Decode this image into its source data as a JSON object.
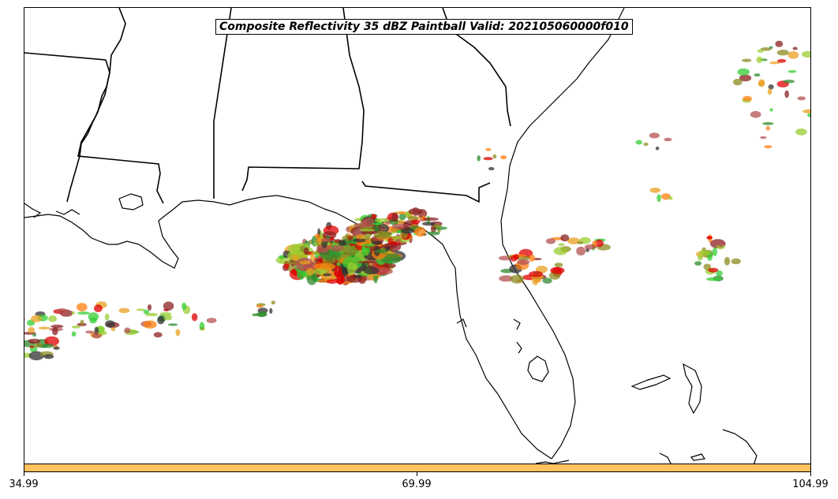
{
  "title": "Composite Reflectivity 35 dBZ Paintball Valid: 202105060000f010",
  "colorbar": {
    "color": "#ffc25e",
    "tick_labels": [
      "34.99",
      "69.99",
      "104.99"
    ]
  },
  "paintball_colors": [
    "#2e8b2e",
    "#33cc33",
    "#e8a020",
    "#ff7f0e",
    "#e00000",
    "#8b2020",
    "#333333",
    "#8b8b20",
    "#b45050",
    "#9acd32"
  ]
}
